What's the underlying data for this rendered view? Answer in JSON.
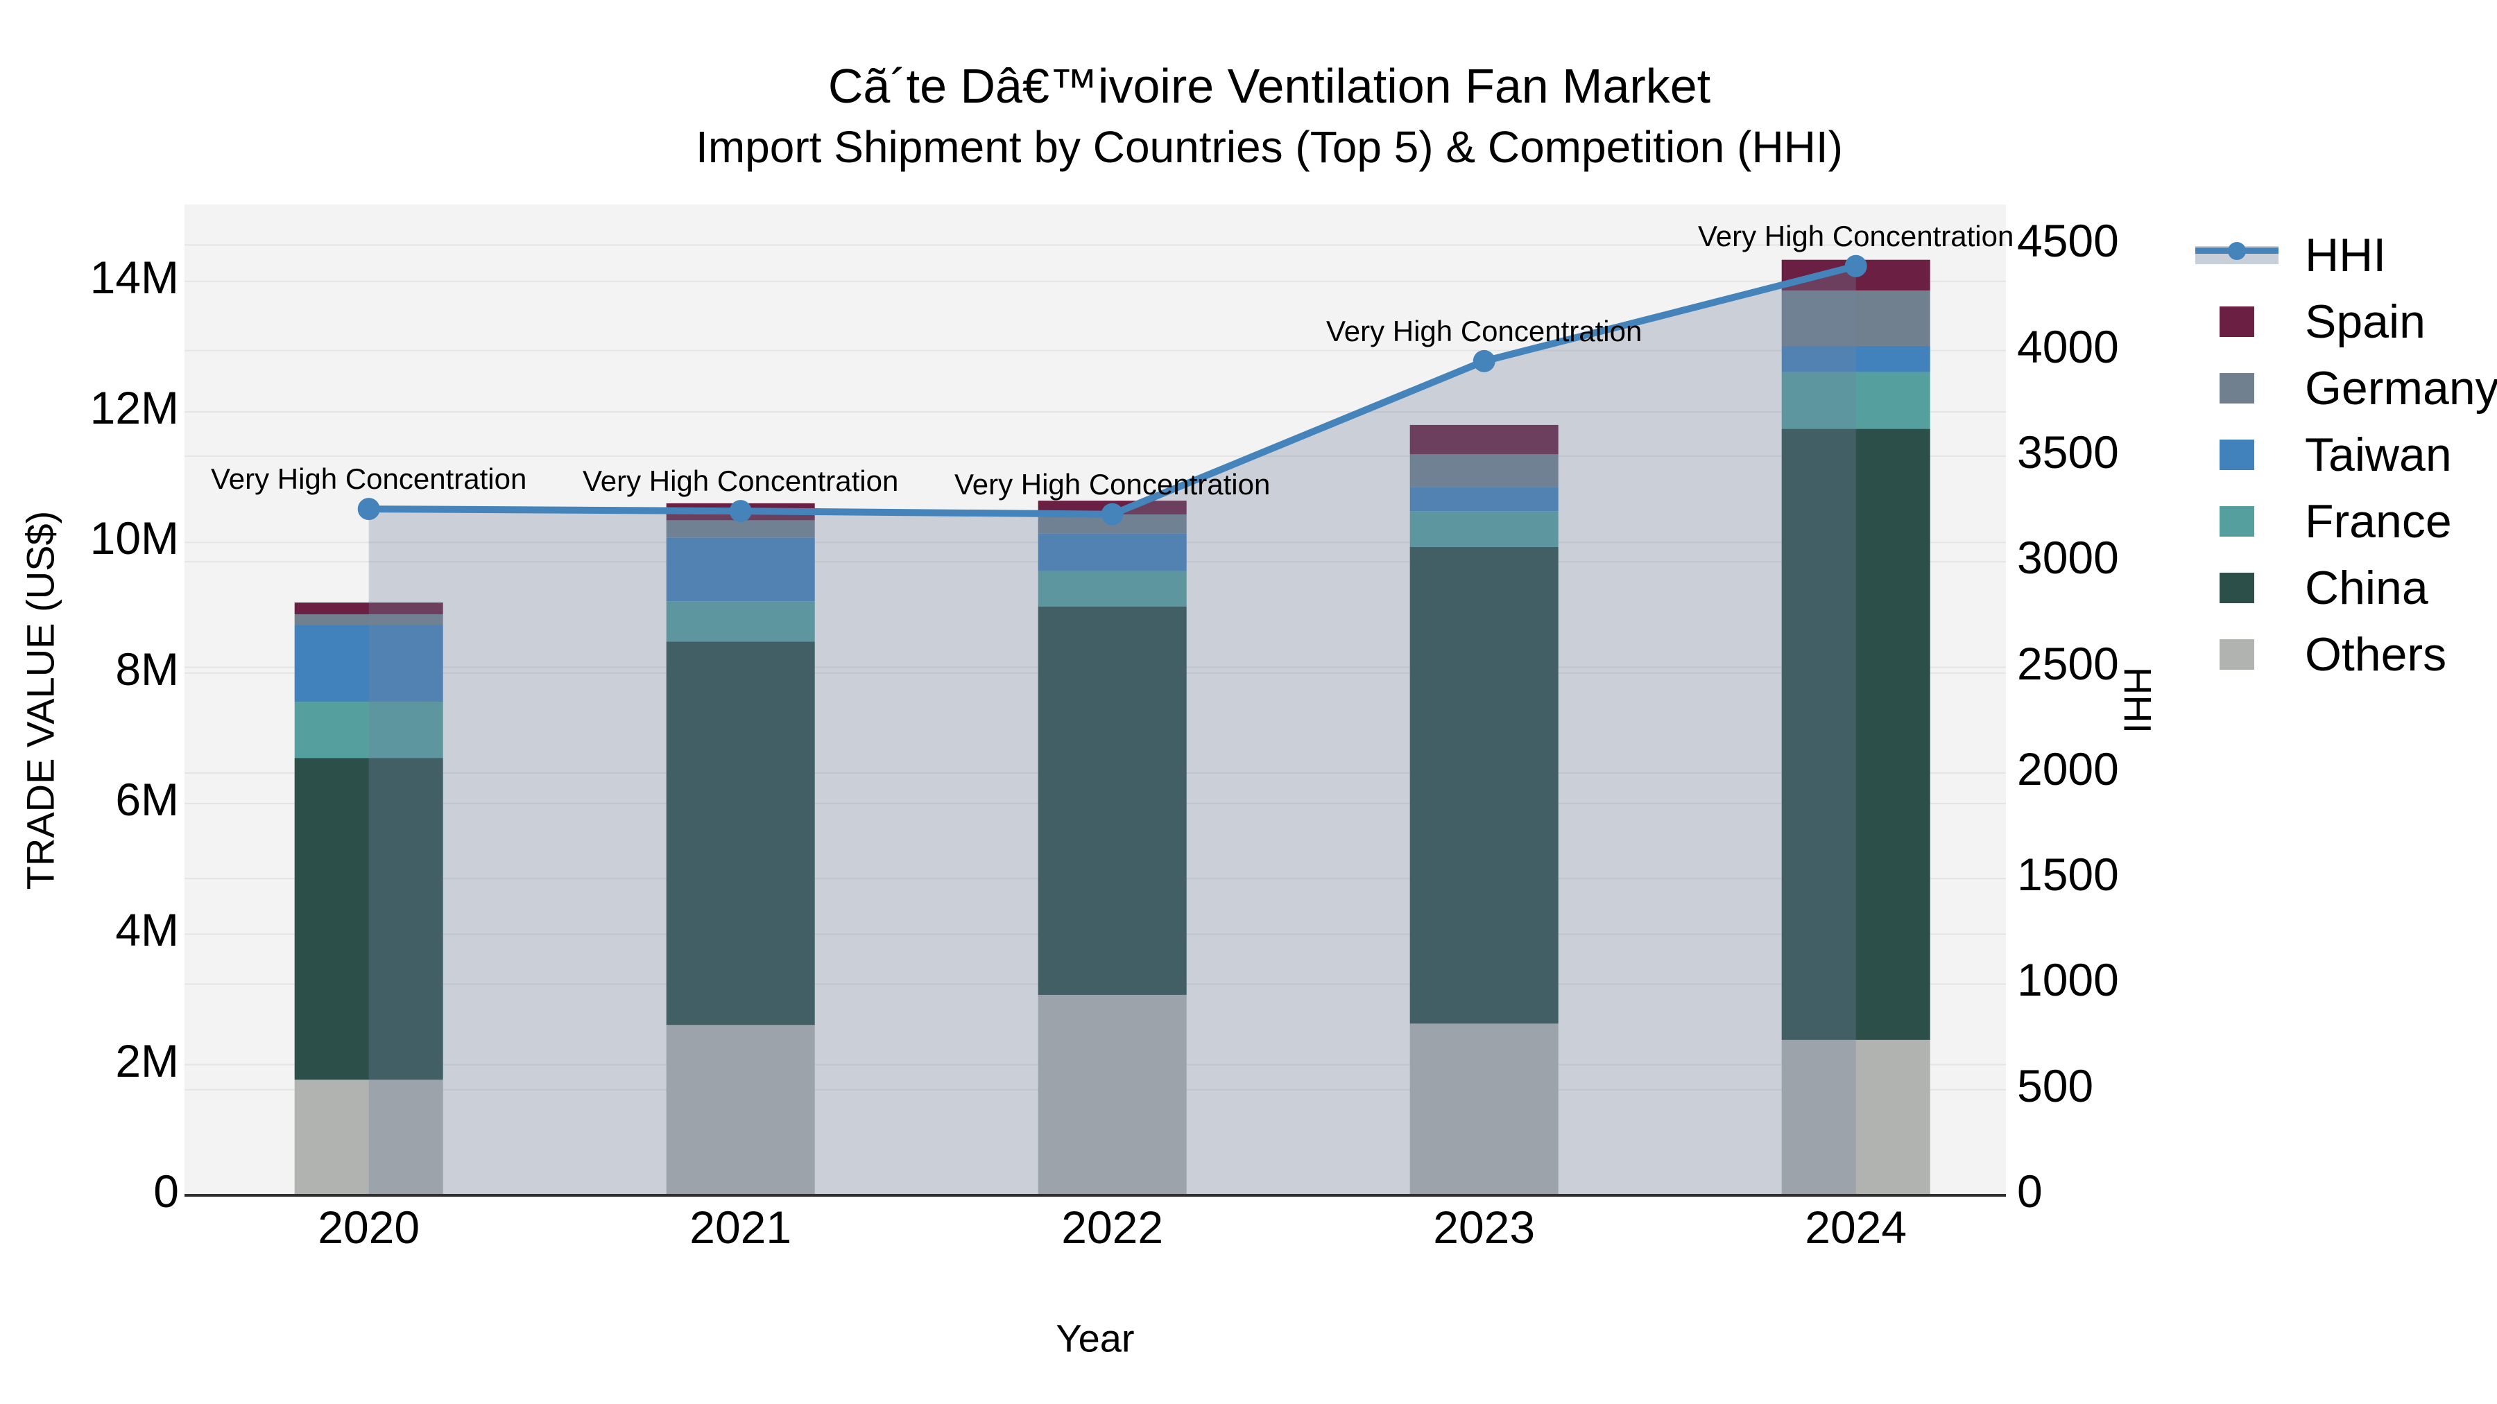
{
  "title": "Cã´te Dâ€™ivoire Ventilation Fan Market",
  "subtitle": "Import Shipment by Countries (Top 5) & Competition (HHI)",
  "chart_data": {
    "type": "bar",
    "subtype": "stacked-bar-with-line",
    "title": "Cã´te Dâ€™ivoire Ventilation Fan Market",
    "subtitle": "Import Shipment by Countries (Top 5) & Competition (HHI)",
    "xlabel": "Year",
    "ylabel_left": "TRADE VALUE (US$)",
    "ylabel_right": "HHI",
    "categories": [
      "2020",
      "2021",
      "2022",
      "2023",
      "2024"
    ],
    "bar_unit": "M US$",
    "series": [
      {
        "name": "Others",
        "color": "#B1B3B1",
        "values": [
          1.77,
          2.61,
          3.07,
          2.63,
          2.38
        ]
      },
      {
        "name": "China",
        "color": "#2C4F4A",
        "values": [
          4.93,
          5.87,
          5.95,
          7.3,
          9.36
        ]
      },
      {
        "name": "France",
        "color": "#55A09F",
        "values": [
          0.86,
          0.62,
          0.54,
          0.55,
          0.87
        ]
      },
      {
        "name": "Taiwan",
        "color": "#4282BC",
        "values": [
          1.18,
          0.97,
          0.58,
          0.37,
          0.4
        ]
      },
      {
        "name": "Germany",
        "color": "#71808F",
        "values": [
          0.16,
          0.27,
          0.29,
          0.5,
          0.85
        ]
      },
      {
        "name": "Spain",
        "color": "#6B1F42",
        "values": [
          0.18,
          0.26,
          0.21,
          0.45,
          0.47
        ]
      }
    ],
    "bar_totals": [
      9.08,
      10.6,
      10.64,
      11.8,
      14.33
    ],
    "line_series": {
      "name": "HHI",
      "color": "#4484BA",
      "area_fill": "rgba(114,132,159,0.32)",
      "values": [
        3250,
        3240,
        3225,
        3950,
        4400
      ]
    },
    "annotations": [
      {
        "category": "2020",
        "text": "Very High Concentration"
      },
      {
        "category": "2021",
        "text": "Very High Concentration"
      },
      {
        "category": "2022",
        "text": "Very High Concentration"
      },
      {
        "category": "2023",
        "text": "Very High Concentration"
      },
      {
        "category": "2024",
        "text": "Very High Concentration"
      }
    ],
    "axis_left": {
      "tick_labels": [
        "0",
        "2M",
        "4M",
        "6M",
        "8M",
        "10M",
        "12M",
        "14M"
      ],
      "tick_values": [
        0,
        2,
        4,
        6,
        8,
        10,
        12,
        14
      ],
      "max": 15.18
    },
    "axis_right": {
      "tick_labels": [
        "0",
        "500",
        "1000",
        "1500",
        "2000",
        "2500",
        "3000",
        "3500",
        "4000",
        "4500"
      ],
      "tick_values": [
        0,
        500,
        1000,
        1500,
        2000,
        2500,
        3000,
        3500,
        4000,
        4500
      ],
      "max": 4691
    },
    "grid": true,
    "legend_position": "right",
    "legend": [
      {
        "label": "HHI",
        "type": "line",
        "color": "#4484BA"
      },
      {
        "label": "Spain",
        "type": "swatch",
        "color": "#6B1F42"
      },
      {
        "label": "Germany",
        "type": "swatch",
        "color": "#71808F"
      },
      {
        "label": "Taiwan",
        "type": "swatch",
        "color": "#4282BC"
      },
      {
        "label": "France",
        "type": "swatch",
        "color": "#55A09F"
      },
      {
        "label": "China",
        "type": "swatch",
        "color": "#2C4F4A"
      },
      {
        "label": "Others",
        "type": "swatch",
        "color": "#B1B3B1"
      }
    ],
    "colors": {
      "plot_background": "#F3F3F3",
      "figure_background": "#FFFFFF",
      "gridline": "#E4E4E4",
      "axis_line": "#2F2F2F",
      "text": "#000000"
    }
  }
}
